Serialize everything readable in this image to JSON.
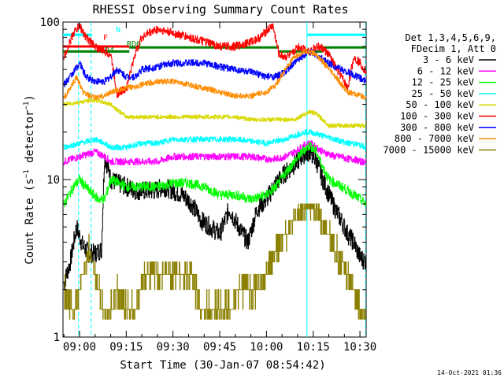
{
  "chart_data": {
    "type": "line",
    "title": "RHESSI Observing Summary Count Rates",
    "xlabel": "Start Time (30-Jan-07 08:54:42)",
    "ylabel": "Count Rate (s-1 detector-1)",
    "ylabel_parts": {
      "main": "Count Rate (s",
      "sup1": "−1",
      "mid": " detector",
      "sup2": "−1",
      "end": ")"
    },
    "y_scale": "log",
    "ylim": [
      1,
      100
    ],
    "yticks": [
      {
        "value": 1,
        "label": "1"
      },
      {
        "value": 10,
        "label": "10"
      },
      {
        "value": 100,
        "label": "100"
      }
    ],
    "xlim": [
      "08:54:42",
      "10:32:00"
    ],
    "xticks": [
      "09:00",
      "09:15",
      "09:30",
      "09:45",
      "10:00",
      "10:15",
      "10:30"
    ],
    "xtick_minutes": [
      0,
      15,
      30,
      45,
      60,
      75,
      90
    ],
    "x_origin": "09:00",
    "xlim_minutes": [
      -5.3,
      92
    ],
    "legend": {
      "placement": "right",
      "header": [
        "Det 1,3,4,5,6,9,",
        "FDecim 1, Att 0"
      ],
      "entries": [
        {
          "label": "3 - 6 keV",
          "color": "#000000"
        },
        {
          "label": "6 - 12 keV",
          "color": "#ff00ff"
        },
        {
          "label": "12 - 25 keV",
          "color": "#00ff00"
        },
        {
          "label": "25 - 50 keV",
          "color": "#00ffff"
        },
        {
          "label": "50 - 100 keV",
          "color": "#d8d800"
        },
        {
          "label": "100 - 300 keV",
          "color": "#ff0000"
        },
        {
          "label": "300 - 800 keV",
          "color": "#0000ff"
        },
        {
          "label": "800 - 7000 keV",
          "color": "#ff8c00"
        },
        {
          "label": "7000 - 15000 keV",
          "color": "#8b8000"
        }
      ]
    },
    "flags": [
      {
        "label": "N",
        "color": "#00ffff"
      },
      {
        "label": "F",
        "color": "#ff0000"
      },
      {
        "label": "RD0",
        "color": "#008000"
      },
      {
        "label": "RD4",
        "color": "#008000"
      }
    ],
    "flag_segments": [
      {
        "label": "N",
        "y": 83,
        "color": "#00ffff",
        "segments": [
          [
            -5.3,
            4
          ],
          [
            73,
            92
          ]
        ]
      },
      {
        "label": "F",
        "y": 70,
        "color": "#ff0000",
        "segments": [
          [
            -5.3,
            16
          ]
        ]
      },
      {
        "label": "RD0",
        "y": 69,
        "color": "#008000",
        "segments": [
          [
            16,
            64
          ],
          [
            78,
            92
          ]
        ]
      },
      {
        "label": "RD4",
        "y": 65,
        "color": "#008000",
        "segments": [
          [
            -5.3,
            16
          ],
          [
            64,
            78
          ]
        ]
      }
    ],
    "series": [
      {
        "name": "3 - 6 keV",
        "color": "#000000",
        "x": [
          -5,
          -3,
          -1,
          1,
          3,
          5,
          7,
          8,
          9,
          10,
          12,
          15,
          18,
          21,
          24,
          27,
          30,
          33,
          36,
          39,
          42,
          45,
          48,
          51,
          54,
          57,
          60,
          63,
          66,
          69,
          72,
          74,
          76,
          78,
          80,
          82,
          84,
          86,
          88,
          90,
          92
        ],
        "y": [
          2.2,
          3.0,
          5.0,
          3.8,
          3.4,
          3.4,
          3.6,
          14,
          12,
          10,
          9.5,
          9.0,
          8.5,
          8.5,
          8.5,
          9.0,
          8.5,
          8.0,
          7.0,
          5.5,
          5.0,
          4.5,
          6.5,
          5.0,
          4.0,
          6.5,
          7.5,
          9.5,
          11,
          12.5,
          14.5,
          15,
          13,
          10,
          8,
          6.5,
          5.5,
          4.5,
          4.0,
          3.2,
          3.0
        ]
      },
      {
        "name": "6 - 12 keV",
        "color": "#ff00ff",
        "x": [
          -5,
          0,
          5,
          8,
          10,
          15,
          20,
          25,
          30,
          35,
          40,
          45,
          50,
          55,
          60,
          63,
          66,
          69,
          72,
          74,
          76,
          78,
          80,
          82,
          84,
          86,
          88,
          90,
          92
        ],
        "y": [
          13,
          14,
          15,
          14,
          13,
          13,
          13,
          13,
          14,
          14,
          14,
          14,
          14,
          14,
          13.5,
          13.5,
          14,
          15,
          16.5,
          17,
          16,
          15,
          14.5,
          14,
          14,
          13.5,
          13.5,
          13,
          13
        ]
      },
      {
        "name": "12 - 25 keV",
        "color": "#00ff00",
        "x": [
          -5,
          -2,
          0,
          3,
          6,
          8,
          10,
          15,
          20,
          25,
          30,
          35,
          40,
          45,
          50,
          55,
          60,
          63,
          66,
          69,
          72,
          74,
          76,
          78,
          80,
          82,
          84,
          86,
          88,
          90,
          92
        ],
        "y": [
          7,
          9,
          10,
          8.5,
          7.5,
          7.5,
          10,
          9,
          9,
          9,
          9.5,
          9.5,
          9,
          8,
          8,
          7.5,
          8,
          9,
          11,
          13,
          15.5,
          16.5,
          15,
          12,
          10,
          9.5,
          9,
          8.5,
          8,
          7.5,
          7
        ]
      },
      {
        "name": "25 - 50 keV",
        "color": "#00ffff",
        "x": [
          -5,
          0,
          5,
          8,
          10,
          15,
          20,
          25,
          30,
          35,
          40,
          45,
          50,
          55,
          60,
          63,
          66,
          69,
          72,
          74,
          76,
          78,
          80,
          82,
          84,
          86,
          88,
          90,
          92
        ],
        "y": [
          16,
          17,
          18,
          17,
          16,
          16,
          17,
          17,
          18,
          18,
          18,
          18,
          18,
          17.5,
          17,
          17.5,
          18,
          19,
          20,
          20,
          19.5,
          19,
          18.5,
          18,
          17.5,
          17,
          17,
          16.5,
          16
        ]
      },
      {
        "name": "50 - 100 keV",
        "color": "#d8d800",
        "x": [
          -5,
          5,
          10,
          15,
          20,
          25,
          30,
          35,
          40,
          45,
          50,
          55,
          60,
          63,
          66,
          69,
          72,
          74,
          76,
          78,
          80,
          82,
          84,
          86,
          88,
          90,
          92
        ],
        "y": [
          30,
          32,
          30,
          25,
          25,
          25,
          25,
          25,
          25,
          25,
          25,
          24,
          24,
          24,
          24,
          24,
          26,
          27,
          26,
          24,
          22,
          22,
          22,
          22,
          22,
          22,
          22
        ]
      },
      {
        "name": "100 - 300 keV",
        "color": "#ff0000",
        "x": [
          -5,
          -2,
          0,
          2,
          5,
          8,
          10,
          12,
          15,
          18,
          20,
          22,
          25,
          30,
          35,
          40,
          45,
          50,
          55,
          58,
          60,
          62,
          64,
          66,
          68,
          70,
          72,
          74,
          76,
          78,
          80,
          82,
          84,
          86,
          88,
          90,
          92
        ],
        "y": [
          60,
          85,
          95,
          80,
          70,
          65,
          62,
          35,
          38,
          65,
          80,
          85,
          90,
          85,
          80,
          75,
          70,
          70,
          75,
          80,
          88,
          95,
          62,
          60,
          62,
          70,
          68,
          65,
          70,
          68,
          62,
          52,
          45,
          38,
          60,
          55,
          48
        ]
      },
      {
        "name": "300 - 800 keV",
        "color": "#0000ff",
        "x": [
          -5,
          -2,
          0,
          2,
          5,
          8,
          10,
          12,
          15,
          18,
          20,
          25,
          30,
          35,
          40,
          45,
          50,
          55,
          60,
          63,
          66,
          69,
          72,
          74,
          76,
          78,
          80,
          82,
          84,
          86,
          88,
          90,
          92
        ],
        "y": [
          40,
          48,
          55,
          45,
          42,
          42,
          45,
          50,
          45,
          45,
          50,
          52,
          55,
          55,
          55,
          52,
          50,
          48,
          45,
          45,
          48,
          55,
          62,
          65,
          62,
          58,
          55,
          52,
          50,
          48,
          46,
          44,
          42
        ]
      },
      {
        "name": "800 - 7000 keV",
        "color": "#ff8c00",
        "x": [
          -5,
          -3,
          -1,
          1,
          3,
          5,
          8,
          10,
          15,
          20,
          25,
          30,
          35,
          40,
          45,
          50,
          55,
          60,
          63,
          66,
          69,
          72,
          74,
          76,
          78,
          80,
          82,
          84,
          86,
          88,
          90,
          92
        ],
        "y": [
          33,
          38,
          45,
          36,
          34,
          33,
          34,
          36,
          38,
          40,
          42,
          42,
          40,
          38,
          36,
          34,
          34,
          36,
          40,
          50,
          60,
          65,
          65,
          62,
          56,
          50,
          45,
          40,
          36,
          35,
          34,
          33
        ]
      },
      {
        "name": "7000 - 15000 keV",
        "color": "#8b8000",
        "x": [
          -5,
          -2,
          0,
          3,
          6,
          9,
          12,
          15,
          18,
          21,
          24,
          27,
          30,
          33,
          36,
          39,
          42,
          45,
          48,
          51,
          54,
          57,
          60,
          63,
          66,
          69,
          72,
          74,
          76,
          78,
          80,
          82,
          84,
          86,
          88,
          90,
          92
        ],
        "y": [
          2,
          1.4,
          2,
          3.5,
          2,
          1.3,
          2,
          1.5,
          1.5,
          2.5,
          2.5,
          2.5,
          2.5,
          2.5,
          2.5,
          1.5,
          1.5,
          1.5,
          1.5,
          2,
          2,
          2,
          2.5,
          3.5,
          4.5,
          5.5,
          6.5,
          7,
          6.5,
          5.5,
          4.5,
          3.5,
          3,
          2.5,
          2,
          1.5,
          1.3
        ]
      }
    ],
    "annotations": [
      "14-Oct-2021 01:36"
    ]
  }
}
